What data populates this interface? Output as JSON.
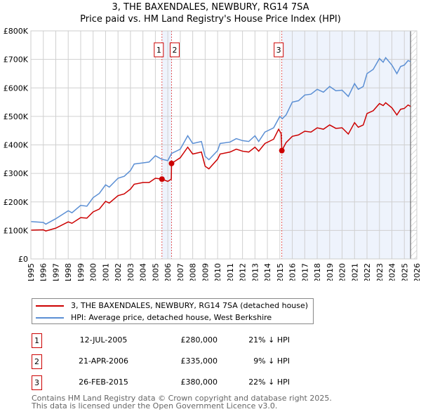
{
  "title": "3, THE BAXENDALES, NEWBURY, RG14 7SA",
  "subtitle": "Price paid vs. HM Land Registry's House Price Index (HPI)",
  "chart_data": {
    "type": "line",
    "ylim": [
      0,
      800000
    ],
    "xlim": [
      1995,
      2026
    ],
    "yticks": [
      {
        "v": 0,
        "label": "£0"
      },
      {
        "v": 100000,
        "label": "£100K"
      },
      {
        "v": 200000,
        "label": "£200K"
      },
      {
        "v": 300000,
        "label": "£300K"
      },
      {
        "v": 400000,
        "label": "£400K"
      },
      {
        "v": 500000,
        "label": "£500K"
      },
      {
        "v": 600000,
        "label": "£600K"
      },
      {
        "v": 700000,
        "label": "£700K"
      },
      {
        "v": 800000,
        "label": "£800K"
      }
    ],
    "xticks": [
      "1995",
      "1996",
      "1997",
      "1998",
      "1999",
      "2000",
      "2001",
      "2002",
      "2003",
      "2004",
      "2005",
      "2006",
      "2007",
      "2008",
      "2009",
      "2010",
      "2011",
      "2012",
      "2013",
      "2014",
      "2015",
      "2016",
      "2017",
      "2018",
      "2019",
      "2020",
      "2021",
      "2022",
      "2023",
      "2024",
      "2025",
      "2026"
    ],
    "series": [
      {
        "name": "3, THE BAXENDALES, NEWBURY, RG14 7SA (detached house)",
        "color": "#cc0000",
        "x": [
          1995,
          1996,
          1996.2,
          1997,
          1998,
          1998.3,
          1999,
          1999.5,
          2000,
          2000.5,
          2001,
          2001.3,
          2002,
          2002.5,
          2003,
          2003.3,
          2004,
          2004.5,
          2005,
          2005.53,
          2006,
          2006.28,
          2006.3,
          2007,
          2007.6,
          2008,
          2008.7,
          2009,
          2009.3,
          2010,
          2010.2,
          2011,
          2011.5,
          2012,
          2012.5,
          2013,
          2013.3,
          2013.8,
          2014.5,
          2014.9,
          2015.1,
          2015.16,
          2015.5,
          2016,
          2016.5,
          2017,
          2017.5,
          2018,
          2018.5,
          2019,
          2019.5,
          2020,
          2020.5,
          2021,
          2021.3,
          2021.7,
          2022,
          2022.5,
          2023,
          2023.3,
          2023.5,
          2024,
          2024.4,
          2024.7,
          2025,
          2025.3,
          2025.5
        ],
        "y": [
          101,
          102,
          98,
          108,
          130,
          125,
          145,
          143,
          165,
          175,
          202,
          196,
          222,
          228,
          245,
          262,
          268,
          268,
          283,
          280,
          272,
          280,
          335,
          355,
          392,
          368,
          375,
          325,
          316,
          350,
          368,
          375,
          385,
          378,
          375,
          392,
          378,
          405,
          420,
          455,
          440,
          380,
          408,
          430,
          435,
          448,
          445,
          460,
          455,
          470,
          458,
          460,
          438,
          478,
          462,
          470,
          510,
          520,
          545,
          538,
          548,
          530,
          505,
          525,
          528,
          540,
          535
        ]
      },
      {
        "name": "HPI: Average price, detached house, West Berkshire",
        "color": "#5b8fd4",
        "x": [
          1995,
          1996,
          1996.2,
          1997,
          1998,
          1998.3,
          1999,
          1999.5,
          2000,
          2000.5,
          2001,
          2001.3,
          2002,
          2002.5,
          2003,
          2003.3,
          2004,
          2004.5,
          2005,
          2005.5,
          2006,
          2006.3,
          2007,
          2007.6,
          2008,
          2008.7,
          2009,
          2009.3,
          2010,
          2010.2,
          2011,
          2011.5,
          2012,
          2012.5,
          2013,
          2013.3,
          2013.8,
          2014.5,
          2015,
          2015.2,
          2015.5,
          2016,
          2016.5,
          2017,
          2017.5,
          2018,
          2018.5,
          2019,
          2019.5,
          2020,
          2020.5,
          2021,
          2021.3,
          2021.7,
          2022,
          2022.5,
          2023,
          2023.3,
          2023.5,
          2024,
          2024.4,
          2024.7,
          2025,
          2025.3,
          2025.5
        ],
        "y": [
          131,
          128,
          122,
          141,
          169,
          162,
          188,
          185,
          215,
          230,
          260,
          252,
          283,
          290,
          310,
          333,
          337,
          340,
          362,
          350,
          345,
          370,
          385,
          432,
          405,
          412,
          360,
          348,
          380,
          405,
          410,
          422,
          415,
          412,
          432,
          412,
          445,
          460,
          500,
          492,
          505,
          550,
          555,
          575,
          578,
          595,
          585,
          605,
          590,
          592,
          570,
          615,
          595,
          605,
          650,
          665,
          703,
          690,
          706,
          680,
          650,
          675,
          680,
          696,
          692
        ]
      }
    ],
    "sales": [
      {
        "n": "1",
        "x": 2005.53,
        "y": 280
      },
      {
        "n": "2",
        "x": 2006.3,
        "y": 335
      },
      {
        "n": "3",
        "x": 2015.16,
        "y": 380
      }
    ],
    "shaded": [
      [
        2005.53,
        2006.3
      ],
      [
        2015.16,
        2025.5
      ]
    ],
    "hatch_from": 2025.5,
    "y_units": "thousands GBP"
  },
  "legend": [
    "3, THE BAXENDALES, NEWBURY, RG14 7SA (detached house)",
    "HPI: Average price, detached house, West Berkshire"
  ],
  "table": [
    {
      "n": "1",
      "date": "12-JUL-2005",
      "price": "£280,000",
      "pct": "21% ↓ HPI"
    },
    {
      "n": "2",
      "date": "21-APR-2006",
      "price": "£335,000",
      "pct": "9% ↓ HPI"
    },
    {
      "n": "3",
      "date": "26-FEB-2015",
      "price": "£380,000",
      "pct": "22% ↓ HPI"
    }
  ],
  "footer": [
    "Contains HM Land Registry data © Crown copyright and database right 2025.",
    "This data is licensed under the Open Government Licence v3.0."
  ]
}
